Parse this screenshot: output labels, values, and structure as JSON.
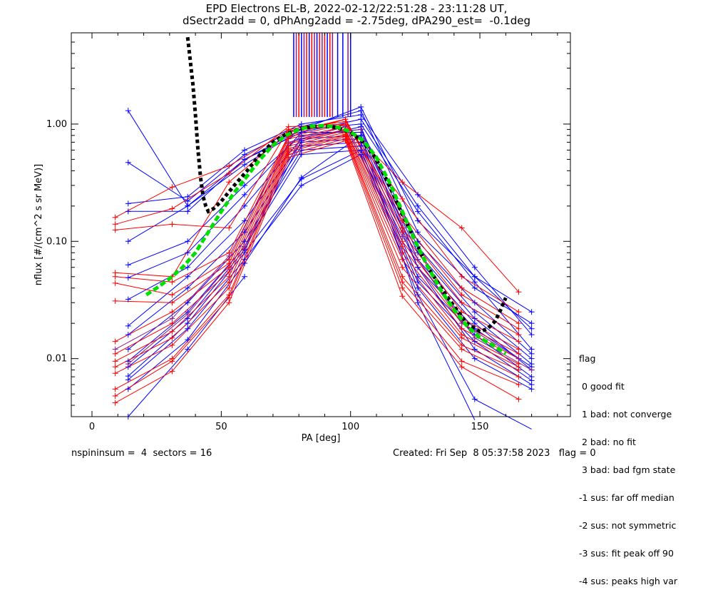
{
  "title": {
    "line1": "EPD Electrons EL-B, 2022-02-12/22:51:28 - 23:11:28 UT,",
    "line2": "dSectr2add = 0, dPhAng2add = -2.75deg, dPA290_est=  -0.1deg"
  },
  "footer": {
    "left": "nspininsum =  4  sectors = 16",
    "right": "Created: Fri Sep  8 05:37:58 2023   flag = 0"
  },
  "legend": {
    "heading": "flag",
    "items": [
      " 0 good fit",
      " 1 bad: not converge",
      " 2 bad: no fit",
      " 3 bad: bad fgm state",
      "-1 sus: far off median",
      "-2 sus: not symmetric",
      "-3 sus: fit peak off 90",
      "-4 sus: peaks high var"
    ]
  },
  "chart_data": {
    "type": "line",
    "xlabel": "PA [deg]",
    "ylabel": "nflux [#/(cm^2 s sr MeV)]",
    "xlim": [
      -8,
      185
    ],
    "ylim": [
      0.0032,
      6.0
    ],
    "yscale": "log",
    "xticks": [
      0,
      50,
      100,
      150
    ],
    "xtick_labels": [
      "0",
      "50",
      "100",
      "150"
    ],
    "yticks": [
      0.01,
      0.1,
      1.0
    ],
    "ytick_labels": [
      "0.01",
      "0.10",
      "1.00"
    ],
    "colors": {
      "blue": "#0000ff",
      "red": "#ff0000",
      "purple": "#8b1a8b",
      "fit_black": "#000000",
      "fit_green": "#00e000"
    },
    "peak_markers": {
      "y_range": [
        1.15,
        6.0
      ],
      "x": [
        78,
        79,
        80,
        81,
        82,
        83,
        84,
        85,
        86,
        87,
        88,
        89,
        90,
        91,
        92,
        93,
        95,
        97,
        99,
        100
      ],
      "colors": [
        "blue",
        "purple",
        "red",
        "blue",
        "purple",
        "red",
        "blue",
        "red",
        "purple",
        "blue",
        "red",
        "purple",
        "red",
        "blue",
        "red",
        "purple",
        "blue",
        "blue",
        "purple",
        "blue"
      ]
    },
    "series": [
      {
        "color": "blue",
        "x": [
          14,
          37,
          59,
          81,
          104,
          126,
          148,
          170
        ],
        "y": [
          1.3,
          0.2,
          0.5,
          0.9,
          1.4,
          0.15,
          0.05,
          0.025
        ]
      },
      {
        "color": "blue",
        "x": [
          14,
          37,
          59,
          81,
          104,
          126,
          148,
          170
        ],
        "y": [
          0.47,
          0.22,
          0.55,
          0.95,
          1.3,
          0.12,
          0.04,
          0.02
        ]
      },
      {
        "color": "blue",
        "x": [
          14,
          37,
          59,
          81,
          104,
          126,
          148,
          170
        ],
        "y": [
          0.21,
          0.24,
          0.6,
          1.0,
          1.2,
          0.25,
          0.06,
          0.016
        ]
      },
      {
        "color": "blue",
        "x": [
          14,
          37,
          59,
          81,
          104,
          126,
          148,
          170
        ],
        "y": [
          0.18,
          0.18,
          0.5,
          0.85,
          1.1,
          0.2,
          0.05,
          0.018
        ]
      },
      {
        "color": "blue",
        "x": [
          14,
          37,
          59,
          81,
          104,
          126,
          148,
          170
        ],
        "y": [
          0.1,
          0.2,
          0.45,
          0.9,
          1.0,
          0.18,
          0.045,
          0.012
        ]
      },
      {
        "color": "blue",
        "x": [
          14,
          37,
          59,
          81,
          104,
          126,
          148,
          170
        ],
        "y": [
          0.063,
          0.1,
          0.3,
          0.8,
          0.9,
          0.1,
          0.03,
          0.011
        ]
      },
      {
        "color": "blue",
        "x": [
          14,
          37,
          59,
          81,
          104,
          126,
          148,
          170
        ],
        "y": [
          0.049,
          0.08,
          0.25,
          0.85,
          0.85,
          0.09,
          0.025,
          0.01
        ]
      },
      {
        "color": "blue",
        "x": [
          14,
          37,
          59,
          81,
          104,
          126,
          148,
          170
        ],
        "y": [
          0.032,
          0.06,
          0.2,
          0.75,
          0.8,
          0.08,
          0.022,
          0.009
        ]
      },
      {
        "color": "blue",
        "x": [
          14,
          37,
          59,
          81,
          104,
          126,
          148,
          170
        ],
        "y": [
          0.019,
          0.05,
          0.15,
          0.7,
          0.75,
          0.07,
          0.02,
          0.008
        ]
      },
      {
        "color": "blue",
        "x": [
          14,
          37,
          59,
          81,
          104,
          126,
          148,
          170
        ],
        "y": [
          0.016,
          0.04,
          0.12,
          0.65,
          0.7,
          0.06,
          0.018,
          0.0085
        ]
      },
      {
        "color": "blue",
        "x": [
          14,
          37,
          59,
          81,
          104,
          126,
          148,
          170
        ],
        "y": [
          0.012,
          0.03,
          0.1,
          0.6,
          0.65,
          0.05,
          0.016,
          0.007
        ]
      },
      {
        "color": "blue",
        "x": [
          14,
          37,
          59,
          81,
          104,
          126,
          148,
          170
        ],
        "y": [
          0.0095,
          0.025,
          0.09,
          0.55,
          0.6,
          0.045,
          0.014,
          0.0065
        ]
      },
      {
        "color": "blue",
        "x": [
          14,
          37,
          59,
          81,
          104,
          126,
          148,
          170
        ],
        "y": [
          0.0085,
          0.022,
          0.085,
          0.72,
          0.95,
          0.06,
          0.012,
          0.006
        ]
      },
      {
        "color": "blue",
        "x": [
          14,
          37,
          59,
          81,
          104,
          126,
          148,
          170
        ],
        "y": [
          0.0071,
          0.02,
          0.08,
          0.34,
          0.6,
          0.04,
          0.01,
          0.0055
        ]
      },
      {
        "color": "blue",
        "x": [
          14,
          37,
          59,
          81,
          104,
          126,
          148,
          170
        ],
        "y": [
          0.0066,
          0.018,
          0.07,
          0.3,
          0.55,
          0.035,
          0.0045,
          0.0025
        ]
      },
      {
        "color": "blue",
        "x": [
          14,
          37,
          59,
          81,
          104,
          126,
          148
        ],
        "y": [
          0.0055,
          0.0145,
          0.065,
          0.35,
          0.8,
          0.03,
          0.003
        ]
      },
      {
        "color": "blue",
        "x": [
          14,
          37,
          59
        ],
        "y": [
          0.0032,
          0.012,
          0.05
        ]
      },
      {
        "color": "red",
        "x": [
          9,
          31,
          53,
          76,
          98,
          120,
          143,
          165
        ],
        "y": [
          0.16,
          0.29,
          0.44,
          0.88,
          0.98,
          0.32,
          0.13,
          0.037
        ]
      },
      {
        "color": "red",
        "x": [
          9,
          31,
          53,
          76,
          98,
          120,
          143,
          165
        ],
        "y": [
          0.14,
          0.19,
          0.38,
          0.95,
          1.0,
          0.23,
          0.05,
          0.025
        ]
      },
      {
        "color": "red",
        "x": [
          9,
          31,
          53,
          76,
          98,
          120,
          143,
          165
        ],
        "y": [
          0.125,
          0.14,
          0.13,
          0.9,
          1.05,
          0.17,
          0.04,
          0.02
        ]
      },
      {
        "color": "red",
        "x": [
          9,
          31,
          53,
          76,
          98,
          120,
          143,
          165
        ],
        "y": [
          0.054,
          0.05,
          0.32,
          0.85,
          1.1,
          0.15,
          0.035,
          0.018
        ]
      },
      {
        "color": "red",
        "x": [
          9,
          31,
          53,
          76,
          98,
          120,
          143,
          165
        ],
        "y": [
          0.05,
          0.045,
          0.08,
          0.8,
          1.1,
          0.13,
          0.03,
          0.016
        ]
      },
      {
        "color": "red",
        "x": [
          9,
          31,
          53,
          76,
          98,
          120,
          143,
          165
        ],
        "y": [
          0.044,
          0.035,
          0.07,
          0.78,
          1.0,
          0.12,
          0.025,
          0.014
        ]
      },
      {
        "color": "red",
        "x": [
          9,
          31,
          53,
          76,
          98,
          120,
          143,
          165
        ],
        "y": [
          0.031,
          0.03,
          0.065,
          0.75,
          0.95,
          0.1,
          0.022,
          0.012
        ]
      },
      {
        "color": "red",
        "x": [
          9,
          31,
          53,
          76,
          98,
          120,
          143,
          165
        ],
        "y": [
          0.014,
          0.025,
          0.06,
          0.7,
          0.9,
          0.09,
          0.02,
          0.011
        ]
      },
      {
        "color": "red",
        "x": [
          9,
          31,
          53,
          76,
          98,
          120,
          143,
          165
        ],
        "y": [
          0.011,
          0.02,
          0.055,
          0.68,
          0.88,
          0.08,
          0.018,
          0.01
        ]
      },
      {
        "color": "red",
        "x": [
          9,
          31,
          53,
          76,
          98,
          120,
          143,
          165
        ],
        "y": [
          0.0095,
          0.017,
          0.05,
          0.65,
          0.85,
          0.07,
          0.016,
          0.009
        ]
      },
      {
        "color": "red",
        "x": [
          9,
          31,
          53,
          76,
          98,
          120,
          143,
          165
        ],
        "y": [
          0.0085,
          0.015,
          0.045,
          0.62,
          0.82,
          0.06,
          0.015,
          0.0085
        ]
      },
      {
        "color": "red",
        "x": [
          9,
          31,
          53,
          76,
          98,
          120,
          143,
          165
        ],
        "y": [
          0.0075,
          0.013,
          0.04,
          0.6,
          0.8,
          0.05,
          0.013,
          0.008
        ]
      },
      {
        "color": "red",
        "x": [
          9,
          31,
          53,
          76,
          98,
          120,
          143,
          165
        ],
        "y": [
          0.0055,
          0.01,
          0.035,
          0.58,
          0.78,
          0.045,
          0.012,
          0.007
        ]
      },
      {
        "color": "red",
        "x": [
          9,
          31,
          53,
          76,
          98,
          120,
          143,
          165
        ],
        "y": [
          0.0048,
          0.0095,
          0.033,
          0.55,
          0.75,
          0.04,
          0.0095,
          0.006
        ]
      },
      {
        "color": "red",
        "x": [
          9,
          31,
          53,
          76,
          98,
          120,
          143,
          165
        ],
        "y": [
          0.0042,
          0.0078,
          0.03,
          0.52,
          0.72,
          0.034,
          0.0085,
          0.0045
        ]
      },
      {
        "color": "purple",
        "x": [
          9,
          31,
          53,
          76,
          98,
          120,
          143,
          165
        ],
        "y": [
          0.012,
          0.022,
          0.075,
          0.7,
          0.95,
          0.11,
          0.02,
          0.01
        ]
      },
      {
        "color": "purple",
        "x": [
          14,
          37,
          59,
          81,
          104,
          126,
          148,
          170
        ],
        "y": [
          0.009,
          0.024,
          0.09,
          0.78,
          0.9,
          0.07,
          0.015,
          0.008
        ]
      }
    ],
    "fits": [
      {
        "color": "fit_black",
        "style": "dotted",
        "x": [
          37,
          38,
          39,
          40,
          41,
          42,
          43,
          44,
          45,
          47,
          50,
          55,
          60,
          65,
          70,
          75,
          80,
          85,
          90,
          95,
          100,
          105,
          110,
          115,
          120,
          125,
          130,
          135,
          140,
          145,
          150,
          153,
          156,
          158,
          160
        ],
        "y": [
          5.5,
          3.5,
          2.2,
          1.2,
          0.6,
          0.35,
          0.24,
          0.2,
          0.18,
          0.19,
          0.22,
          0.3,
          0.4,
          0.55,
          0.7,
          0.82,
          0.9,
          0.95,
          0.96,
          0.93,
          0.85,
          0.7,
          0.5,
          0.3,
          0.17,
          0.1,
          0.06,
          0.04,
          0.028,
          0.02,
          0.017,
          0.018,
          0.021,
          0.026,
          0.033
        ]
      },
      {
        "color": "fit_green",
        "style": "dashed",
        "x": [
          21,
          25,
          30,
          35,
          40,
          45,
          50,
          55,
          60,
          65,
          70,
          75,
          80,
          85,
          90,
          95,
          100,
          105,
          110,
          115,
          120,
          125,
          130,
          135,
          140,
          145,
          150,
          155,
          160
        ],
        "y": [
          0.035,
          0.04,
          0.048,
          0.06,
          0.08,
          0.12,
          0.18,
          0.26,
          0.36,
          0.5,
          0.66,
          0.8,
          0.9,
          0.96,
          0.97,
          0.94,
          0.86,
          0.72,
          0.52,
          0.32,
          0.18,
          0.1,
          0.06,
          0.038,
          0.026,
          0.019,
          0.015,
          0.013,
          0.011
        ]
      }
    ]
  }
}
